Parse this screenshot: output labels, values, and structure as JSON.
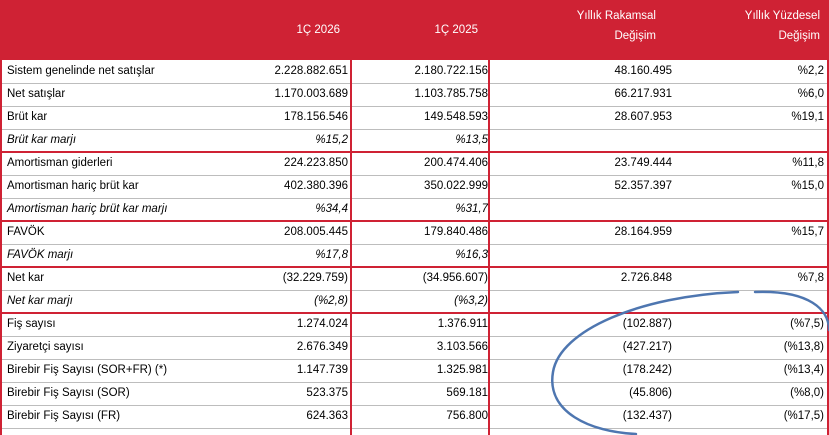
{
  "header": {
    "col1": "1Ç 2026",
    "col2": "1Ç 2025",
    "col3_line1": "Yıllık Rakamsal",
    "col3_line2": "Değişim",
    "col4_line1": "Yıllık Yüzdesel",
    "col4_line2": "Değişim"
  },
  "rows": [
    {
      "label": "Sistem genelinde net satışlar",
      "v1": "2.228.882.651",
      "v2": "2.180.722.156",
      "v3": "48.160.495",
      "v4": "%2,2"
    },
    {
      "label": "Net satışlar",
      "v1": "1.170.003.689",
      "v2": "1.103.785.758",
      "v3": "66.217.931",
      "v4": "%6,0"
    },
    {
      "label": "Brüt kar",
      "v1": "178.156.546",
      "v2": "149.548.593",
      "v3": "28.607.953",
      "v4": "%19,1"
    },
    {
      "label": "Brüt kar marjı",
      "v1": "%15,2",
      "v2": "%13,5",
      "v3": "",
      "v4": ""
    },
    {
      "label": "Amortisman giderleri",
      "v1": "224.223.850",
      "v2": "200.474.406",
      "v3": "23.749.444",
      "v4": "%11,8"
    },
    {
      "label": "Amortisman hariç brüt kar",
      "v1": "402.380.396",
      "v2": "350.022.999",
      "v3": "52.357.397",
      "v4": "%15,0"
    },
    {
      "label": "Amortisman hariç brüt kar marjı",
      "v1": "%34,4",
      "v2": "%31,7",
      "v3": "",
      "v4": ""
    },
    {
      "label": "FAVÖK",
      "v1": "208.005.445",
      "v2": "179.840.486",
      "v3": "28.164.959",
      "v4": "%15,7"
    },
    {
      "label": "FAVÖK marjı",
      "v1": "%17,8",
      "v2": "%16,3",
      "v3": "",
      "v4": ""
    },
    {
      "label": "Net kar",
      "v1": "(32.229.759)",
      "v2": "(34.956.607)",
      "v3": "2.726.848",
      "v4": "%7,8"
    },
    {
      "label": "Net kar marjı",
      "v1": "(%2,8)",
      "v2": "(%3,2)",
      "v3": "",
      "v4": ""
    },
    {
      "label": "Fiş sayısı",
      "v1": "1.274.024",
      "v2": "1.376.911",
      "v3": "(102.887)",
      "v4": "(%7,5)"
    },
    {
      "label": "Ziyaretçi sayısı",
      "v1": "2.676.349",
      "v2": "3.103.566",
      "v3": "(427.217)",
      "v4": "(%13,8)"
    },
    {
      "label": "Birebir Fiş Sayısı (SOR+FR) (*)",
      "v1": "1.147.739",
      "v2": "1.325.981",
      "v3": "(178.242)",
      "v4": "(%13,4)"
    },
    {
      "label": "Birebir Fiş Sayısı (SOR)",
      "v1": "523.375",
      "v2": "569.181",
      "v3": "(45.806)",
      "v4": "(%8,0)"
    },
    {
      "label": "Birebir Fiş Sayısı (FR)",
      "v1": "624.363",
      "v2": "756.800",
      "v3": "(132.437)",
      "v4": "(%17,5)"
    }
  ],
  "colors": {
    "header_bg": "#cf2234",
    "annotation": "#4e76b0"
  }
}
